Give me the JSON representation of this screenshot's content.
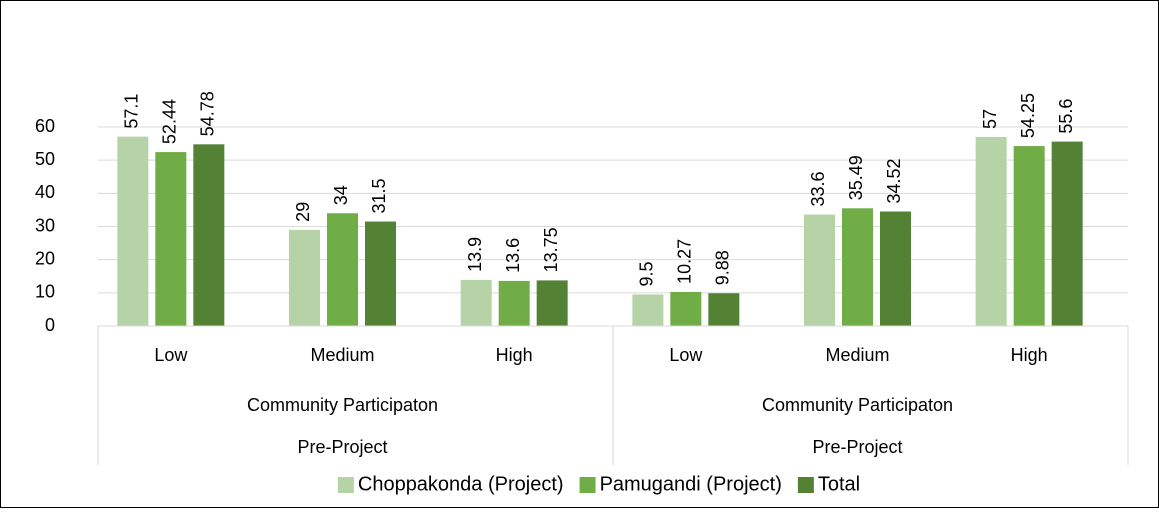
{
  "chart_data": {
    "type": "bar",
    "categories": [
      "Low",
      "Medium",
      "High",
      "Low",
      "Medium",
      "High"
    ],
    "group_levels": [
      [
        "Community Participaton",
        "Community Participaton"
      ],
      [
        "Pre-Project",
        "Pre-Project"
      ]
    ],
    "series": [
      {
        "name": "Choppakonda (Project)",
        "color": "#b5d3a7",
        "values": [
          57.1,
          29,
          13.9,
          9.5,
          33.6,
          57
        ]
      },
      {
        "name": "Pamugandi (Project)",
        "color": "#70ad47",
        "values": [
          52.44,
          34,
          13.6,
          10.27,
          35.49,
          54.25
        ]
      },
      {
        "name": "Total",
        "color": "#548235",
        "values": [
          54.78,
          31.5,
          13.75,
          9.88,
          34.52,
          55.6
        ]
      }
    ],
    "ylim": [
      0,
      60
    ],
    "yticks": [
      0,
      10,
      20,
      30,
      40,
      50,
      60
    ],
    "grid": true,
    "legend": "bottom"
  }
}
